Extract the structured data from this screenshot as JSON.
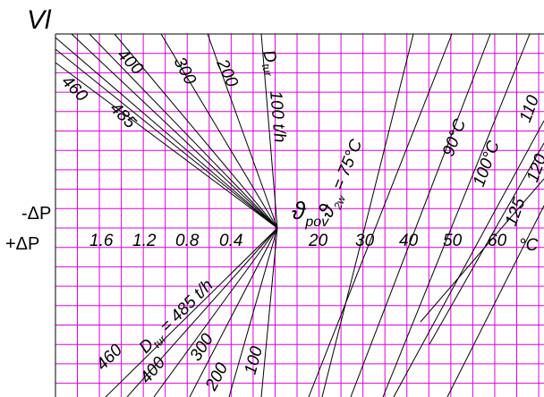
{
  "axis_label": "Vl",
  "minus_dp": "-ΔP",
  "plus_dp": "+ΔP",
  "left_scale": [
    "1.6",
    "1.2",
    "0.8",
    "0.4"
  ],
  "right_scale": [
    "20",
    "30",
    "40",
    "50",
    "60"
  ],
  "unit": "°C",
  "upper_flow_labels": [
    "460",
    "400",
    "485",
    "300",
    "200"
  ],
  "d_tur_upper": {
    "symbol": "D",
    "sub": "tur"
  },
  "flow_100": "100 t/h",
  "theta_pov": {
    "symbol": "ϑ",
    "sub": "pov"
  },
  "theta_2w": {
    "symbol": "ϑ",
    "sub": "2w",
    "rest": " = 75°C"
  },
  "temp_labels": [
    "90°C",
    "100°C",
    "110",
    "120",
    "125"
  ],
  "lower_flow_labels": [
    "460",
    "400",
    "300",
    "200",
    "100"
  ],
  "d_tur_lower": {
    "symbol": "D",
    "sub": "tur",
    "rest": " = 485 t/h"
  }
}
